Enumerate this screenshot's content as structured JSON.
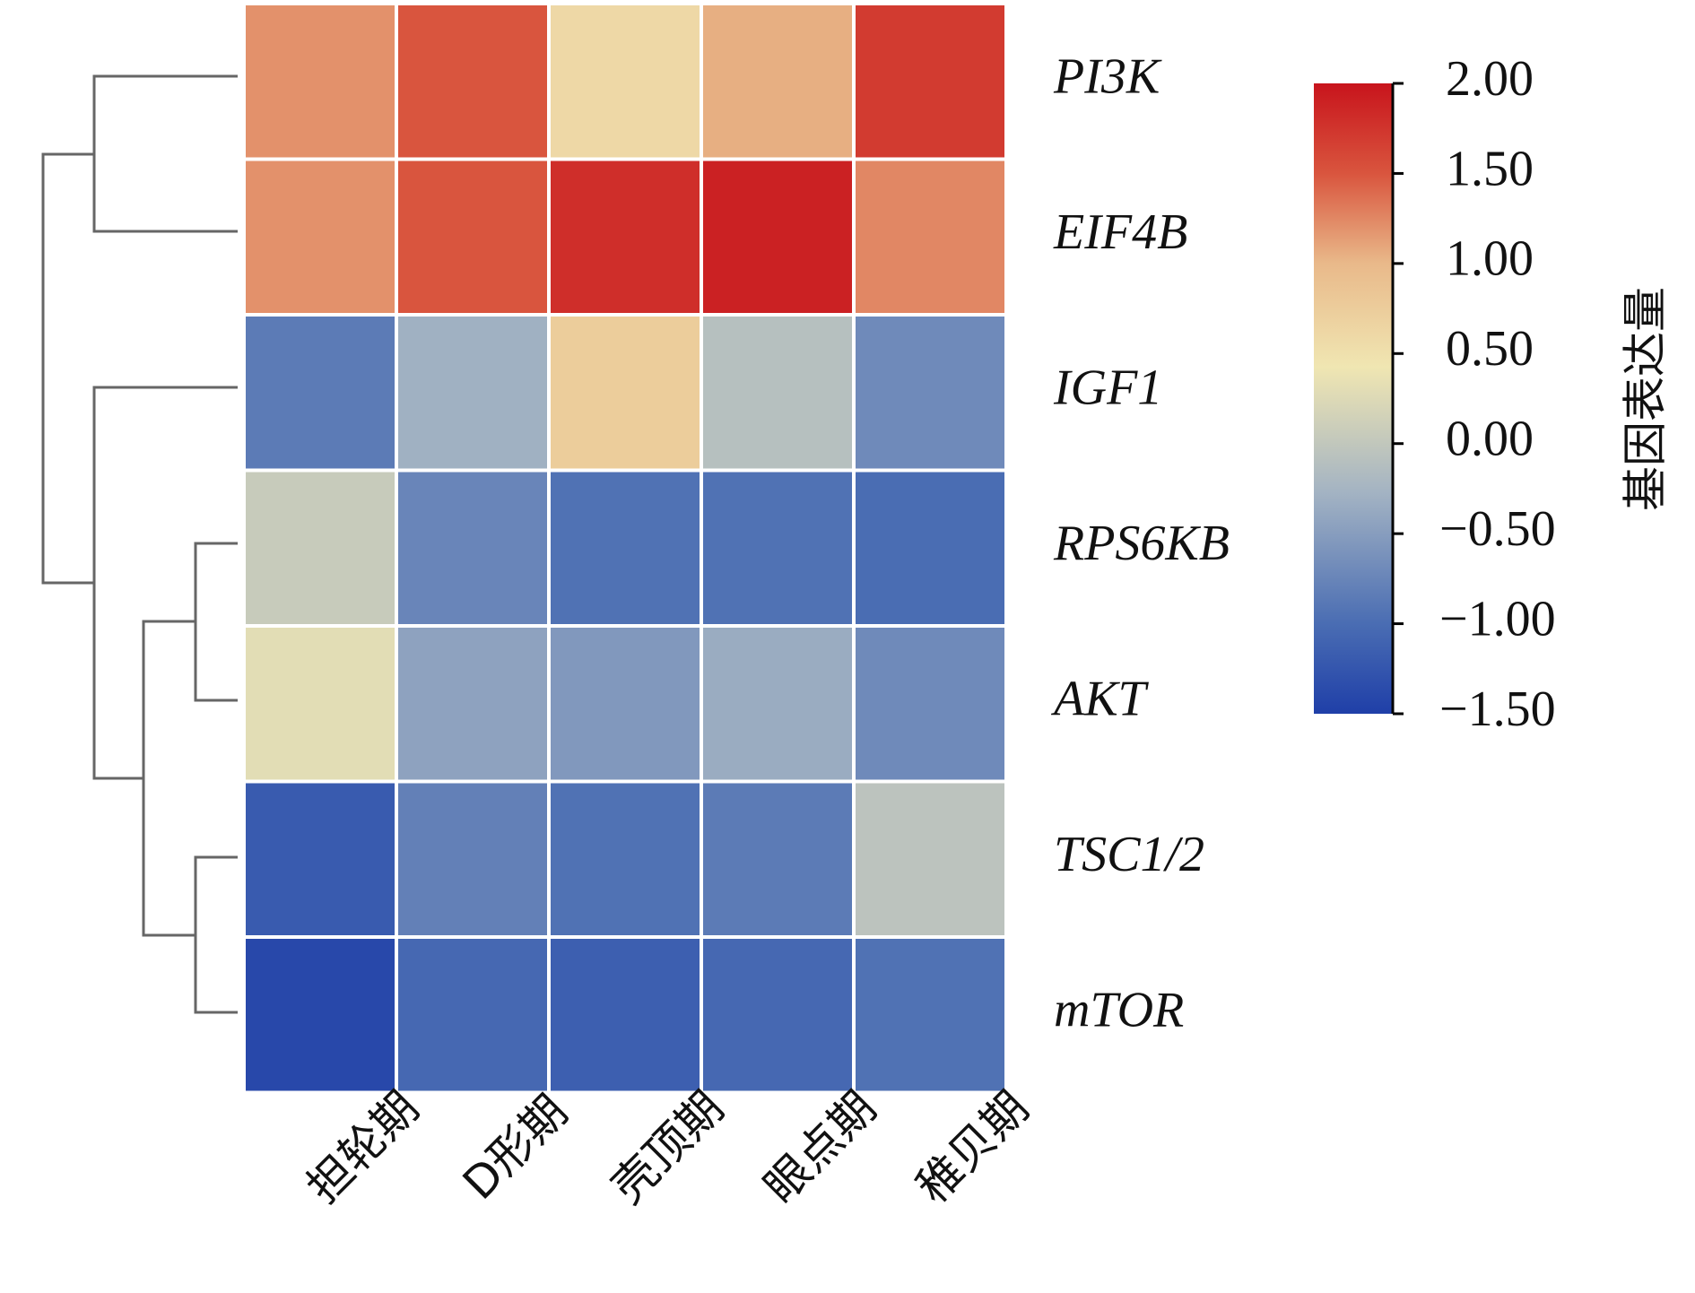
{
  "chart_data": {
    "type": "heatmap",
    "rows": [
      "PI3K",
      "EIF4B",
      "IGF1",
      "RPS6KB",
      "AKT",
      "TSC1/2",
      "mTOR"
    ],
    "columns": [
      "担轮期",
      "D形期",
      "壳顶期",
      "眼点期",
      "稚贝期"
    ],
    "values": [
      [
        1.2,
        1.5,
        0.6,
        1.05,
        1.7
      ],
      [
        1.2,
        1.5,
        1.8,
        1.9,
        1.25
      ],
      [
        -0.85,
        -0.3,
        0.75,
        -0.1,
        -0.7
      ],
      [
        0.05,
        -0.75,
        -0.95,
        -0.95,
        -1.0
      ],
      [
        0.3,
        -0.45,
        -0.55,
        -0.35,
        -0.7
      ],
      [
        -1.2,
        -0.8,
        -0.95,
        -0.85,
        -0.05
      ],
      [
        -1.4,
        -1.05,
        -1.15,
        -1.05,
        -0.95
      ]
    ],
    "colorbar": {
      "title": "基因表达量",
      "ticks": [
        "2.00",
        "1.50",
        "1.00",
        "0.50",
        "0.00",
        "−0.50",
        "−1.00",
        "−1.50"
      ],
      "range": [
        -1.5,
        2.0
      ],
      "colors": [
        "#1f3fa8",
        "#4a6db3",
        "#a3b3c3",
        "#f0e6b2",
        "#e9b98a",
        "#d9553e",
        "#c8141c"
      ]
    },
    "dendrogram": "left (row clustering)"
  }
}
